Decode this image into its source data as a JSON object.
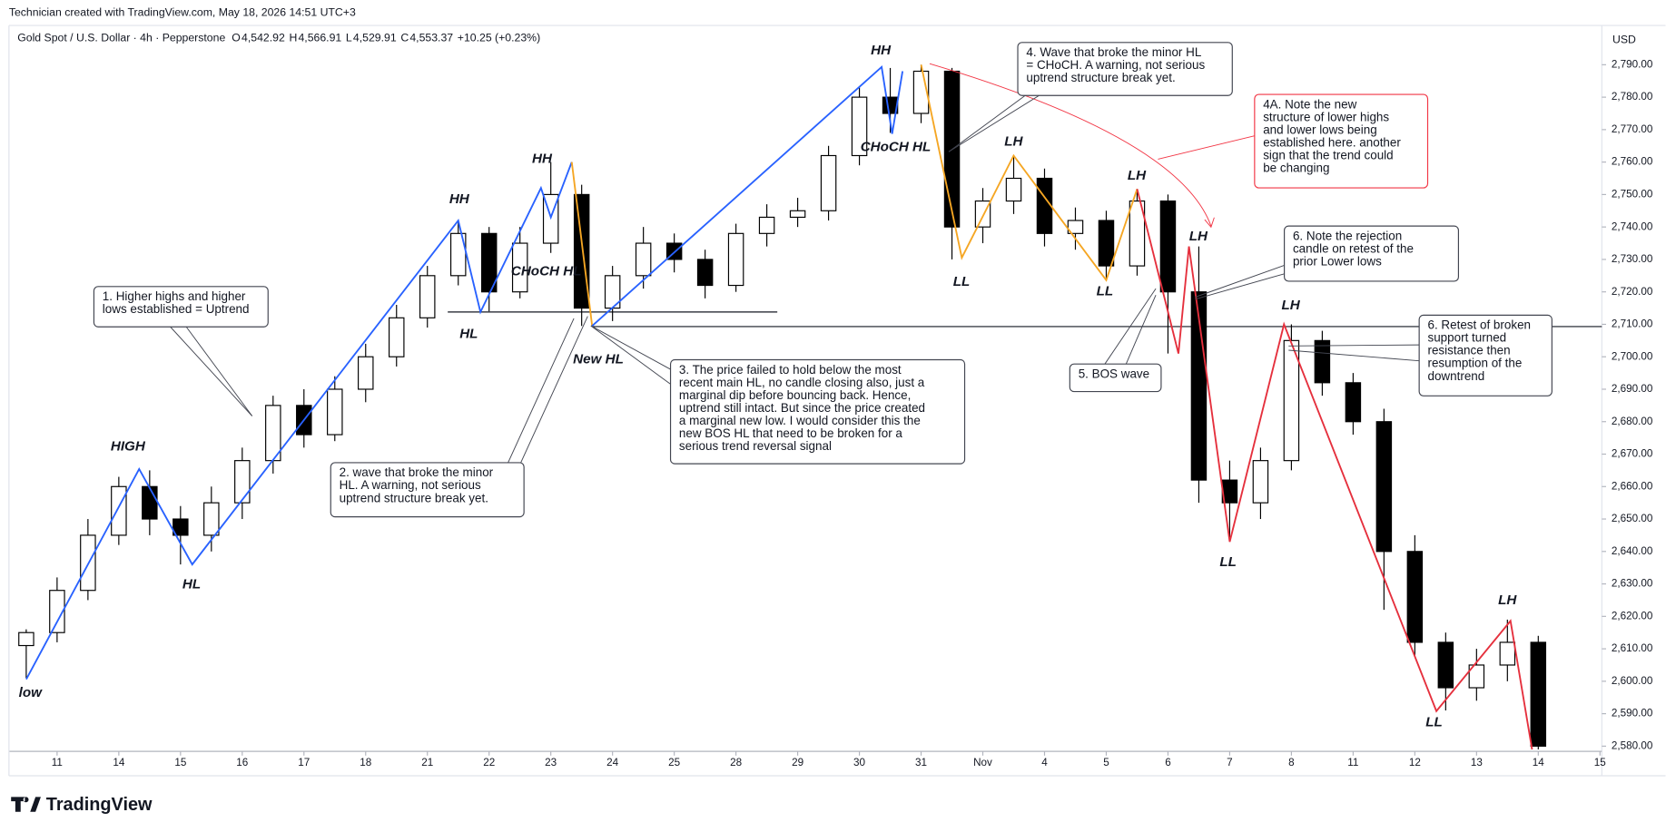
{
  "header": {
    "credit": "Technician created with TradingView.com, May 18, 2026 14:51 UTC+3",
    "symbol": "Gold Spot / U.S. Dollar · 4h · Pepperstone",
    "ohlc_keys": [
      "O",
      "H",
      "L",
      "C"
    ],
    "ohlc_values": [
      "4,542.92",
      "4,566.91",
      "4,529.91",
      "4,553.37"
    ],
    "change": "+10.25 (+0.23%)",
    "brand": "TradingView"
  },
  "chart_data": {
    "type": "candlestick",
    "currency": "USD",
    "up_color": "#ffffff",
    "down_color": "#000000",
    "x": [
      -0.5,
      0,
      0.5,
      1,
      1.5,
      2,
      2.5,
      3,
      3.5,
      4,
      4.5,
      5,
      5.5,
      6,
      6.5,
      7,
      7.5,
      8,
      8.5,
      9,
      9.5,
      10,
      10.5,
      11,
      11.5,
      12,
      12.5,
      13,
      13.5,
      14,
      14.5,
      15,
      15.5,
      16,
      16.5,
      17,
      17.5,
      18,
      18.5,
      19,
      19.5,
      20,
      20.5,
      21,
      21.5,
      22,
      22.5,
      23,
      23.5,
      24
    ],
    "open": [
      2611,
      2615,
      2628,
      2645,
      2660,
      2650,
      2645,
      2655,
      2668,
      2685,
      2676,
      2690,
      2700,
      2712,
      2725,
      2738,
      2720,
      2735,
      2750,
      2715,
      2725,
      2735,
      2730,
      2722,
      2738,
      2743,
      2745,
      2762,
      2780,
      2775,
      2788,
      2740,
      2748,
      2755,
      2738,
      2742,
      2728,
      2748,
      2720,
      2662,
      2655,
      2668,
      2705,
      2692,
      2680,
      2640,
      2612,
      2598,
      2605,
      2612
    ],
    "high": [
      2616,
      2632,
      2650,
      2663,
      2665,
      2654,
      2660,
      2672,
      2688,
      2690,
      2694,
      2704,
      2716,
      2728,
      2742,
      2740,
      2740,
      2760,
      2753,
      2728,
      2740,
      2738,
      2733,
      2741,
      2747,
      2749,
      2765,
      2783,
      2789,
      2790,
      2789,
      2752,
      2762,
      2758,
      2746,
      2745,
      2751.7,
      2750,
      2734,
      2668,
      2672,
      2710,
      2708,
      2695,
      2684,
      2645,
      2615,
      2610,
      2619,
      2614
    ],
    "low": [
      2601,
      2612,
      2625,
      2642,
      2645,
      2636,
      2640,
      2650,
      2664,
      2672,
      2674,
      2686,
      2697,
      2709,
      2722,
      2714,
      2718,
      2732,
      2709.5,
      2711,
      2721,
      2726,
      2718,
      2720,
      2734,
      2740,
      2742,
      2759,
      2769,
      2772,
      2730,
      2735,
      2744,
      2734,
      2733,
      2723.6,
      2725,
      2701,
      2655,
      2643,
      2650,
      2665,
      2688,
      2676,
      2622,
      2608,
      2591,
      2594,
      2600,
      2579
    ],
    "close": [
      2615,
      2628,
      2645,
      2660,
      2650,
      2645,
      2655,
      2668,
      2685,
      2676,
      2690,
      2700,
      2712,
      2725,
      2738,
      2720,
      2735,
      2750,
      2715,
      2725,
      2735,
      2730,
      2722,
      2738,
      2743,
      2745,
      2762,
      2780,
      2775,
      2788,
      2740,
      2748,
      2755,
      2738,
      2742,
      2728,
      2748,
      2720,
      2662,
      2655,
      2668,
      2705,
      2692,
      2680,
      2640,
      2612,
      2598,
      2605,
      2612,
      2580
    ],
    "xlim": [
      -0.78,
      25.03
    ],
    "ylim": [
      2578.4,
      2802.1
    ],
    "xticks": [
      {
        "value": 0,
        "label": "11"
      },
      {
        "value": 1,
        "label": "14"
      },
      {
        "value": 2,
        "label": "15"
      },
      {
        "value": 3,
        "label": "16"
      },
      {
        "value": 4,
        "label": "17"
      },
      {
        "value": 5,
        "label": "18"
      },
      {
        "value": 6,
        "label": "21"
      },
      {
        "value": 7,
        "label": "22"
      },
      {
        "value": 8,
        "label": "23"
      },
      {
        "value": 9,
        "label": "24"
      },
      {
        "value": 10,
        "label": "25"
      },
      {
        "value": 11,
        "label": "28"
      },
      {
        "value": 12,
        "label": "29"
      },
      {
        "value": 13,
        "label": "30"
      },
      {
        "value": 14,
        "label": "31"
      },
      {
        "value": 15,
        "label": "Nov"
      },
      {
        "value": 16,
        "label": "4"
      },
      {
        "value": 17,
        "label": "5"
      },
      {
        "value": 18,
        "label": "6"
      },
      {
        "value": 19,
        "label": "7"
      },
      {
        "value": 20,
        "label": "8"
      },
      {
        "value": 21,
        "label": "11"
      },
      {
        "value": 22,
        "label": "12"
      },
      {
        "value": 23,
        "label": "13"
      },
      {
        "value": 24,
        "label": "14"
      },
      {
        "value": 25,
        "label": "15"
      }
    ],
    "yticks": [
      {
        "value": 2580,
        "label": "2,580.00"
      },
      {
        "value": 2590,
        "label": "2,590.00"
      },
      {
        "value": 2600,
        "label": "2,600.00"
      },
      {
        "value": 2610,
        "label": "2,610.00"
      },
      {
        "value": 2620,
        "label": "2,620.00"
      },
      {
        "value": 2630,
        "label": "2,630.00"
      },
      {
        "value": 2640,
        "label": "2,640.00"
      },
      {
        "value": 2650,
        "label": "2,650.00"
      },
      {
        "value": 2660,
        "label": "2,660.00"
      },
      {
        "value": 2670,
        "label": "2,670.00"
      },
      {
        "value": 2680,
        "label": "2,680.00"
      },
      {
        "value": 2690,
        "label": "2,690.00"
      },
      {
        "value": 2700,
        "label": "2,700.00"
      },
      {
        "value": 2710,
        "label": "2,710.00"
      },
      {
        "value": 2720,
        "label": "2,720.00"
      },
      {
        "value": 2730,
        "label": "2,730.00"
      },
      {
        "value": 2740,
        "label": "2,740.00"
      },
      {
        "value": 2750,
        "label": "2,750.00"
      },
      {
        "value": 2760,
        "label": "2,760.00"
      },
      {
        "value": 2770,
        "label": "2,770.00"
      },
      {
        "value": 2780,
        "label": "2,780.00"
      },
      {
        "value": 2790,
        "label": "2,790.00"
      }
    ],
    "waves": [
      {
        "color": "#2962ff",
        "x": [
          -0.5,
          1.33,
          2.19,
          6.5,
          6.86,
          7.84,
          8.0,
          8.34
        ],
        "y": [
          2600.6,
          2665.4,
          2636,
          2742,
          2713.8,
          2752,
          2743,
          2760
        ]
      },
      {
        "color": "#f5a623",
        "x": [
          8.34,
          8.67
        ],
        "y": [
          2760,
          2709.5
        ]
      },
      {
        "color": "#2962ff",
        "x": [
          8.67,
          13.36,
          13.53,
          13.7
        ],
        "y": [
          2709.5,
          2789.3,
          2768.7,
          2788
        ]
      },
      {
        "color": "#f5a623",
        "x": [
          14.0,
          14.66,
          15.5,
          17.0,
          17.5
        ],
        "y": [
          2790,
          2730.5,
          2762,
          2723.6,
          2751.7
        ]
      },
      {
        "color": "#e5303d",
        "x": [
          17.5,
          18.17,
          18.34,
          19.0,
          19.88,
          22.35,
          23.55,
          23.9
        ],
        "y": [
          2751.7,
          2701,
          2734,
          2643,
          2710,
          2590.8,
          2618.6,
          2579
        ]
      }
    ],
    "levels": [
      {
        "y": 2713.8,
        "x": [
          6.33,
          11.67
        ]
      },
      {
        "y": 2709.3,
        "x": [
          8.67,
          25.03
        ]
      }
    ],
    "wave_labels": [
      "low",
      "HIGH",
      "HL",
      "HH",
      "HL",
      "HH",
      "CHoCH HL",
      "New HL",
      "HH",
      "CHoCH HL",
      "LL",
      "LH",
      "LL",
      "LH",
      "LH",
      "LL",
      "LH",
      "LL",
      "LH"
    ],
    "callouts": [
      {
        "lines": [
          "1. Higher highs and higher",
          "lows established = Uptrend"
        ]
      },
      {
        "lines": [
          "2. wave that broke the minor",
          "HL. A warning, not serious",
          "uptrend structure break yet."
        ]
      },
      {
        "lines": [
          "3. The price failed to hold below the most",
          "recent main HL, no candle closing also, just a",
          "marginal dip before bouncing back. Hence,",
          "uptrend still intact. But since the price created",
          "a marginal new low. I would consider this the",
          "new BOS HL that need to be broken for a",
          "serious trend reversal signal"
        ]
      },
      {
        "lines": [
          "4. Wave that broke the minor HL",
          "= CHoCH. A warning, not serious",
          "uptrend structure break yet."
        ]
      },
      {
        "lines": [
          "4A.  Note the new",
          "structure of lower highs",
          "and lower lows being",
          "established here. another",
          "sign that the trend could",
          "be changing"
        ]
      },
      {
        "lines": [
          "5. BOS wave"
        ]
      },
      {
        "lines": [
          "6. Note the rejection",
          "candle on retest of the",
          "prior Lower lows"
        ]
      },
      {
        "lines": [
          "6. Retest of broken",
          "support turned",
          "resistance then",
          "resumption of the",
          "downtrend"
        ]
      }
    ]
  }
}
